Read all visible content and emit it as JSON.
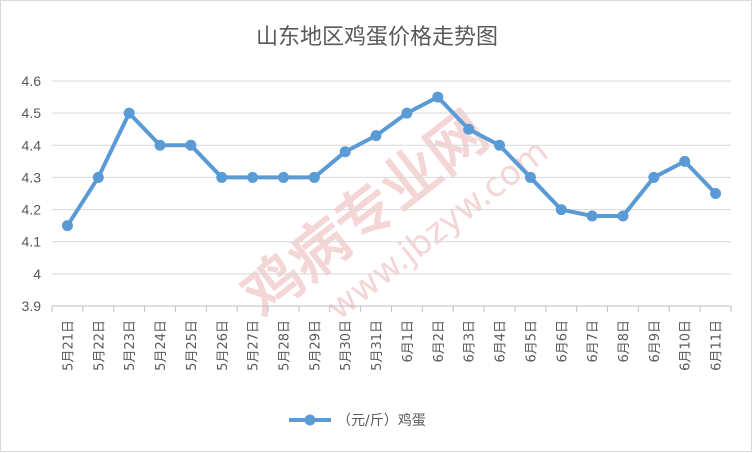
{
  "chart_data": {
    "type": "line",
    "title": "山东地区鸡蛋价格走势图",
    "categories": [
      "5月21日",
      "5月22日",
      "5月23日",
      "5月24日",
      "5月25日",
      "5月26日",
      "5月27日",
      "5月28日",
      "5月29日",
      "5月30日",
      "5月31日",
      "6月1日",
      "6月2日",
      "6月3日",
      "6月4日",
      "6月5日",
      "6月6日",
      "6月7日",
      "6月8日",
      "6月9日",
      "6月10日",
      "6月11日"
    ],
    "series": [
      {
        "name": "（元/斤）鸡蛋",
        "color": "#5b9bd5",
        "values": [
          4.15,
          4.3,
          4.5,
          4.4,
          4.4,
          4.3,
          4.3,
          4.3,
          4.3,
          4.38,
          4.43,
          4.5,
          4.55,
          4.45,
          4.4,
          4.3,
          4.2,
          4.18,
          4.18,
          4.3,
          4.35,
          4.25
        ]
      }
    ],
    "yticks": [
      "3.9",
      "4",
      "4.1",
      "4.2",
      "4.3",
      "4.4",
      "4.5",
      "4.6"
    ],
    "ylim": [
      3.9,
      4.6
    ],
    "grid": true,
    "legend": "bottom"
  },
  "watermark": {
    "main": "鸡病专业网",
    "url": "www.jbzyw.com"
  }
}
